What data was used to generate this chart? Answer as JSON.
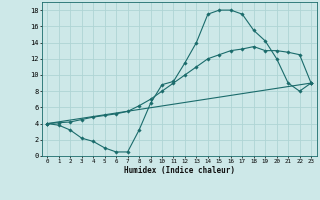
{
  "xlabel": "Humidex (Indice chaleur)",
  "bg_color": "#cde8e8",
  "grid_color": "#afd4d4",
  "line_color": "#1a6b6b",
  "xlim": [
    -0.5,
    23.5
  ],
  "ylim": [
    0,
    19
  ],
  "xticks": [
    0,
    1,
    2,
    3,
    4,
    5,
    6,
    7,
    8,
    9,
    10,
    11,
    12,
    13,
    14,
    15,
    16,
    17,
    18,
    19,
    20,
    21,
    22,
    23
  ],
  "yticks": [
    0,
    2,
    4,
    6,
    8,
    10,
    12,
    14,
    16,
    18
  ],
  "curve1_x": [
    0,
    1,
    2,
    3,
    4,
    5,
    6,
    7,
    8,
    9,
    10,
    11,
    12,
    13,
    14,
    15,
    16,
    17,
    18,
    19,
    20,
    21,
    22,
    23
  ],
  "curve1_y": [
    4,
    3.8,
    3.2,
    2.2,
    1.8,
    1.0,
    0.5,
    0.5,
    3.2,
    6.5,
    8.8,
    9.2,
    11.5,
    14,
    17.5,
    18,
    18,
    17.5,
    15.5,
    14.2,
    12,
    9,
    8,
    9
  ],
  "curve2_x": [
    0,
    23
  ],
  "curve2_y": [
    4,
    9
  ],
  "curve3_x": [
    0,
    1,
    2,
    3,
    4,
    5,
    6,
    7,
    8,
    9,
    10,
    11,
    12,
    13,
    14,
    15,
    16,
    17,
    18,
    19,
    20,
    21,
    22,
    23
  ],
  "curve3_y": [
    4,
    4.1,
    4.2,
    4.5,
    4.8,
    5.0,
    5.2,
    5.5,
    6.2,
    7.0,
    8.0,
    9.0,
    10.0,
    11.0,
    12.0,
    12.5,
    13.0,
    13.2,
    13.5,
    13.0,
    13.0,
    12.8,
    12.5,
    9
  ]
}
